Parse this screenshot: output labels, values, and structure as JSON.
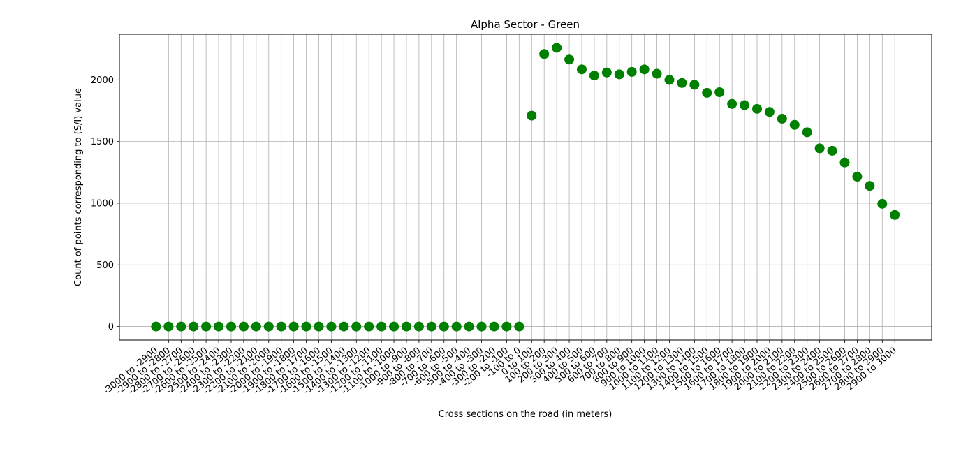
{
  "chart_data": {
    "type": "scatter",
    "title": "Alpha Sector - Green",
    "xlabel": "Cross sections on the road (in meters)",
    "ylabel": "Count of points corresponding to (S/I) value",
    "ylim": [
      -110,
      2370
    ],
    "yticks": [
      0,
      500,
      1000,
      1500,
      2000
    ],
    "grid": true,
    "marker_color": "#008000",
    "categories": [
      "-3000 to -2900",
      "-2900 to -2800",
      "-2800 to -2700",
      "-2700 to -2600",
      "-2600 to -2500",
      "-2500 to -2400",
      "-2400 to -2300",
      "-2300 to -2200",
      "-2200 to -2100",
      "-2100 to -2000",
      "-2000 to -1900",
      "-1900 to -1800",
      "-1800 to -1700",
      "-1700 to -1600",
      "-1600 to -1500",
      "-1500 to -1400",
      "-1400 to -1300",
      "-1300 to -1200",
      "-1200 to -1100",
      "-1100 to -1000",
      "-1000 to -900",
      "-900 to -800",
      "-800 to -700",
      "-700 to -600",
      "-600 to -500",
      "-500 to -400",
      "-400 to -300",
      "-300 to -200",
      "-200 to -100",
      "-100 to 0",
      "0 to 100",
      "100 to 200",
      "200 to 300",
      "300 to 400",
      "400 to 500",
      "500 to 600",
      "600 to 700",
      "700 to 800",
      "800 to 900",
      "900 to 1000",
      "1000 to 1100",
      "1100 to 1200",
      "1200 to 1300",
      "1300 to 1400",
      "1400 to 1500",
      "1500 to 1600",
      "1600 to 1700",
      "1700 to 1800",
      "1800 to 1900",
      "1900 to 2000",
      "2000 to 2100",
      "2100 to 2200",
      "2200 to 2300",
      "2300 to 2400",
      "2400 to 2500",
      "2500 to 2600",
      "2600 to 2700",
      "2700 to 2800",
      "2800 to 2900",
      "2900 to 3000"
    ],
    "values": [
      0,
      0,
      0,
      0,
      0,
      0,
      0,
      0,
      0,
      0,
      0,
      0,
      0,
      0,
      0,
      0,
      0,
      0,
      0,
      0,
      0,
      0,
      0,
      0,
      0,
      0,
      0,
      0,
      0,
      0,
      1710,
      2210,
      2260,
      2165,
      2085,
      2035,
      2060,
      2045,
      2065,
      2085,
      2050,
      2000,
      1975,
      1960,
      1895,
      1900,
      1805,
      1795,
      1765,
      1740,
      1685,
      1635,
      1575,
      1445,
      1425,
      1330,
      1215,
      1140,
      995,
      905
    ]
  }
}
